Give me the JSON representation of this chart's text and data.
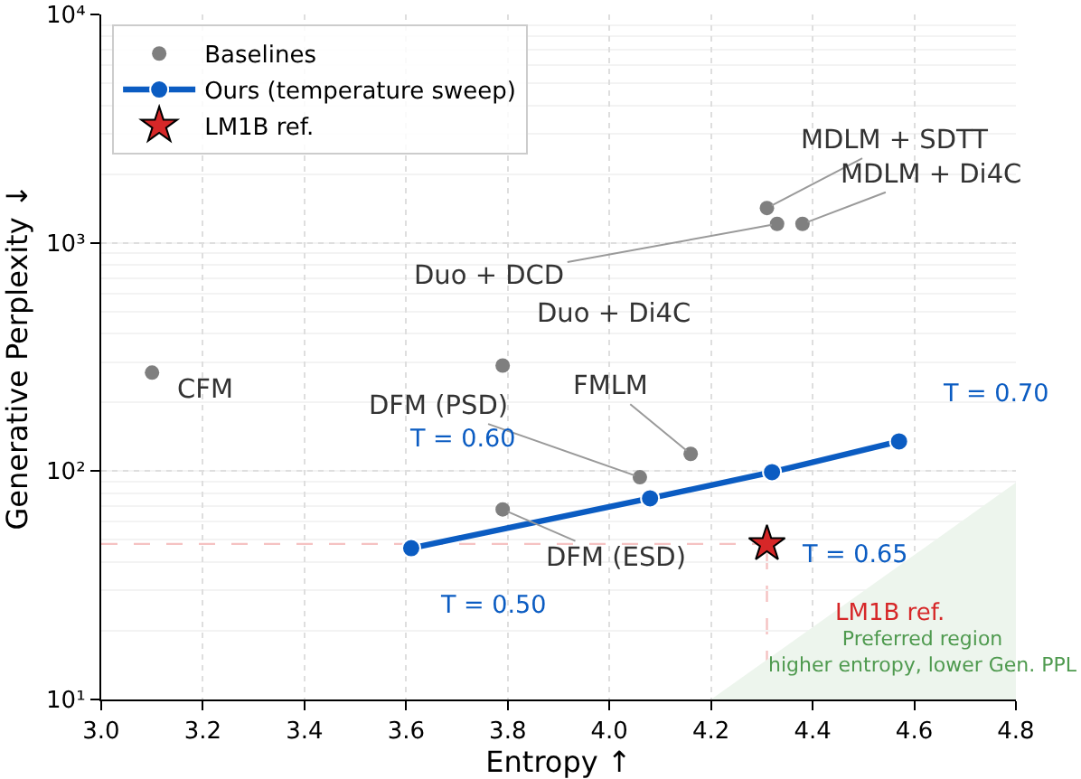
{
  "chart_data": {
    "type": "scatter",
    "xlabel": "Entropy ↑",
    "ylabel": "Generative Perplexity ↓",
    "xlim": [
      3.0,
      4.8
    ],
    "xticks": [
      {
        "value": 3.0,
        "label": "3.0"
      },
      3.2,
      3.4,
      3.6,
      3.8,
      {
        "value": 4.0,
        "label": "4.0"
      },
      4.2,
      4.4,
      4.6,
      4.8
    ],
    "ylim": [
      10,
      10000
    ],
    "yticks": [
      {
        "value": 10,
        "label": "10¹"
      },
      {
        "value": 100,
        "label": "10²"
      },
      {
        "value": 1000,
        "label": "10³"
      },
      {
        "value": 10000,
        "label": "10⁴"
      }
    ],
    "log": "y",
    "grid": true,
    "legend": "top left",
    "series": [
      {
        "type": "area",
        "color": "#edf5ed",
        "x": [
          4.2,
          4.8
        ],
        "values": [
          10,
          89
        ]
      },
      {
        "name": "Baselines",
        "marker": "circle",
        "color": "#7f7f7f",
        "x": [
          3.1,
          4.33,
          3.79,
          4.31,
          4.38,
          4.16,
          4.06,
          3.79
        ],
        "values": [
          270,
          1210,
          290,
          1420,
          1210,
          119,
          94,
          68
        ]
      },
      {
        "name": "Ours (temperature sweep)",
        "type": "line",
        "marker": "circle",
        "line_style": "solid",
        "color": "#0b5cc2",
        "x": [
          3.61,
          4.08,
          4.32,
          4.57
        ],
        "values": [
          46,
          76,
          99,
          135
        ]
      },
      {
        "name": "LM1B ref.",
        "marker": "star",
        "color": "#d62728",
        "x": [
          4.31
        ],
        "values": [
          48
        ]
      }
    ],
    "ref_lines": [
      {
        "axis": "y",
        "value": 48,
        "color": "#f5c2c2",
        "line_style": "dashed"
      },
      {
        "axis": "x",
        "value": 4.31,
        "color": "#f5c2c2",
        "line_style": "dashed"
      }
    ],
    "annotations": [
      {
        "text": "CFM",
        "x": 3.1,
        "y": 270
      },
      {
        "text": "Duo + DCD",
        "x": 4.33,
        "y": 1210
      },
      {
        "text": "Duo + Di4C",
        "x": 3.79,
        "y": 290
      },
      {
        "text": "MDLM + SDTT",
        "x": 4.31,
        "y": 1420
      },
      {
        "text": "MDLM + Di4C",
        "x": 4.38,
        "y": 1210
      },
      {
        "text": "FMLM",
        "x": 4.16,
        "y": 119
      },
      {
        "text": "DFM (PSD)",
        "x": 4.06,
        "y": 94
      },
      {
        "text": "DFM (ESD)",
        "x": 3.79,
        "y": 68
      },
      {
        "text": "T = 0.50",
        "x": 3.61,
        "y": 46
      },
      "T = 0.60",
      "T = 0.65",
      {
        "text": "T = 0.70",
        "x": 4.57,
        "y": 135
      },
      "LM1B ref.",
      "Preferred region\nhigher entropy, lower Gen. PPL"
    ]
  }
}
